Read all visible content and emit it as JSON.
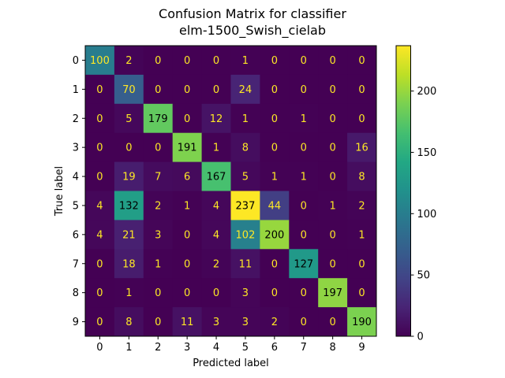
{
  "chart_data": {
    "type": "heatmap",
    "title_lines": [
      "Confusion Matrix for classifier",
      "elm-1500_Swish_cielab"
    ],
    "xlabel": "Predicted label",
    "ylabel": "True label",
    "x_categories": [
      "0",
      "1",
      "2",
      "3",
      "4",
      "5",
      "6",
      "7",
      "8",
      "9"
    ],
    "y_categories": [
      "0",
      "1",
      "2",
      "3",
      "4",
      "5",
      "6",
      "7",
      "8",
      "9"
    ],
    "matrix": [
      [
        100,
        2,
        0,
        0,
        0,
        1,
        0,
        0,
        0,
        0
      ],
      [
        0,
        70,
        0,
        0,
        0,
        24,
        0,
        0,
        0,
        0
      ],
      [
        0,
        5,
        179,
        0,
        12,
        1,
        0,
        1,
        0,
        0
      ],
      [
        0,
        0,
        0,
        191,
        1,
        8,
        0,
        0,
        0,
        16
      ],
      [
        0,
        19,
        7,
        6,
        167,
        5,
        1,
        1,
        0,
        8
      ],
      [
        4,
        132,
        2,
        1,
        4,
        237,
        44,
        0,
        1,
        2
      ],
      [
        4,
        21,
        3,
        0,
        4,
        102,
        200,
        0,
        0,
        1
      ],
      [
        0,
        18,
        1,
        0,
        2,
        11,
        0,
        127,
        0,
        0
      ],
      [
        0,
        1,
        0,
        0,
        0,
        3,
        0,
        0,
        197,
        0
      ],
      [
        0,
        8,
        0,
        11,
        3,
        3,
        2,
        0,
        0,
        190
      ]
    ],
    "colormap": "viridis",
    "vmin": 0,
    "vmax": 237,
    "colorbar_ticks": [
      0,
      50,
      100,
      150,
      200
    ],
    "text_color_low": "#fde725",
    "text_color_high": "#000000"
  }
}
